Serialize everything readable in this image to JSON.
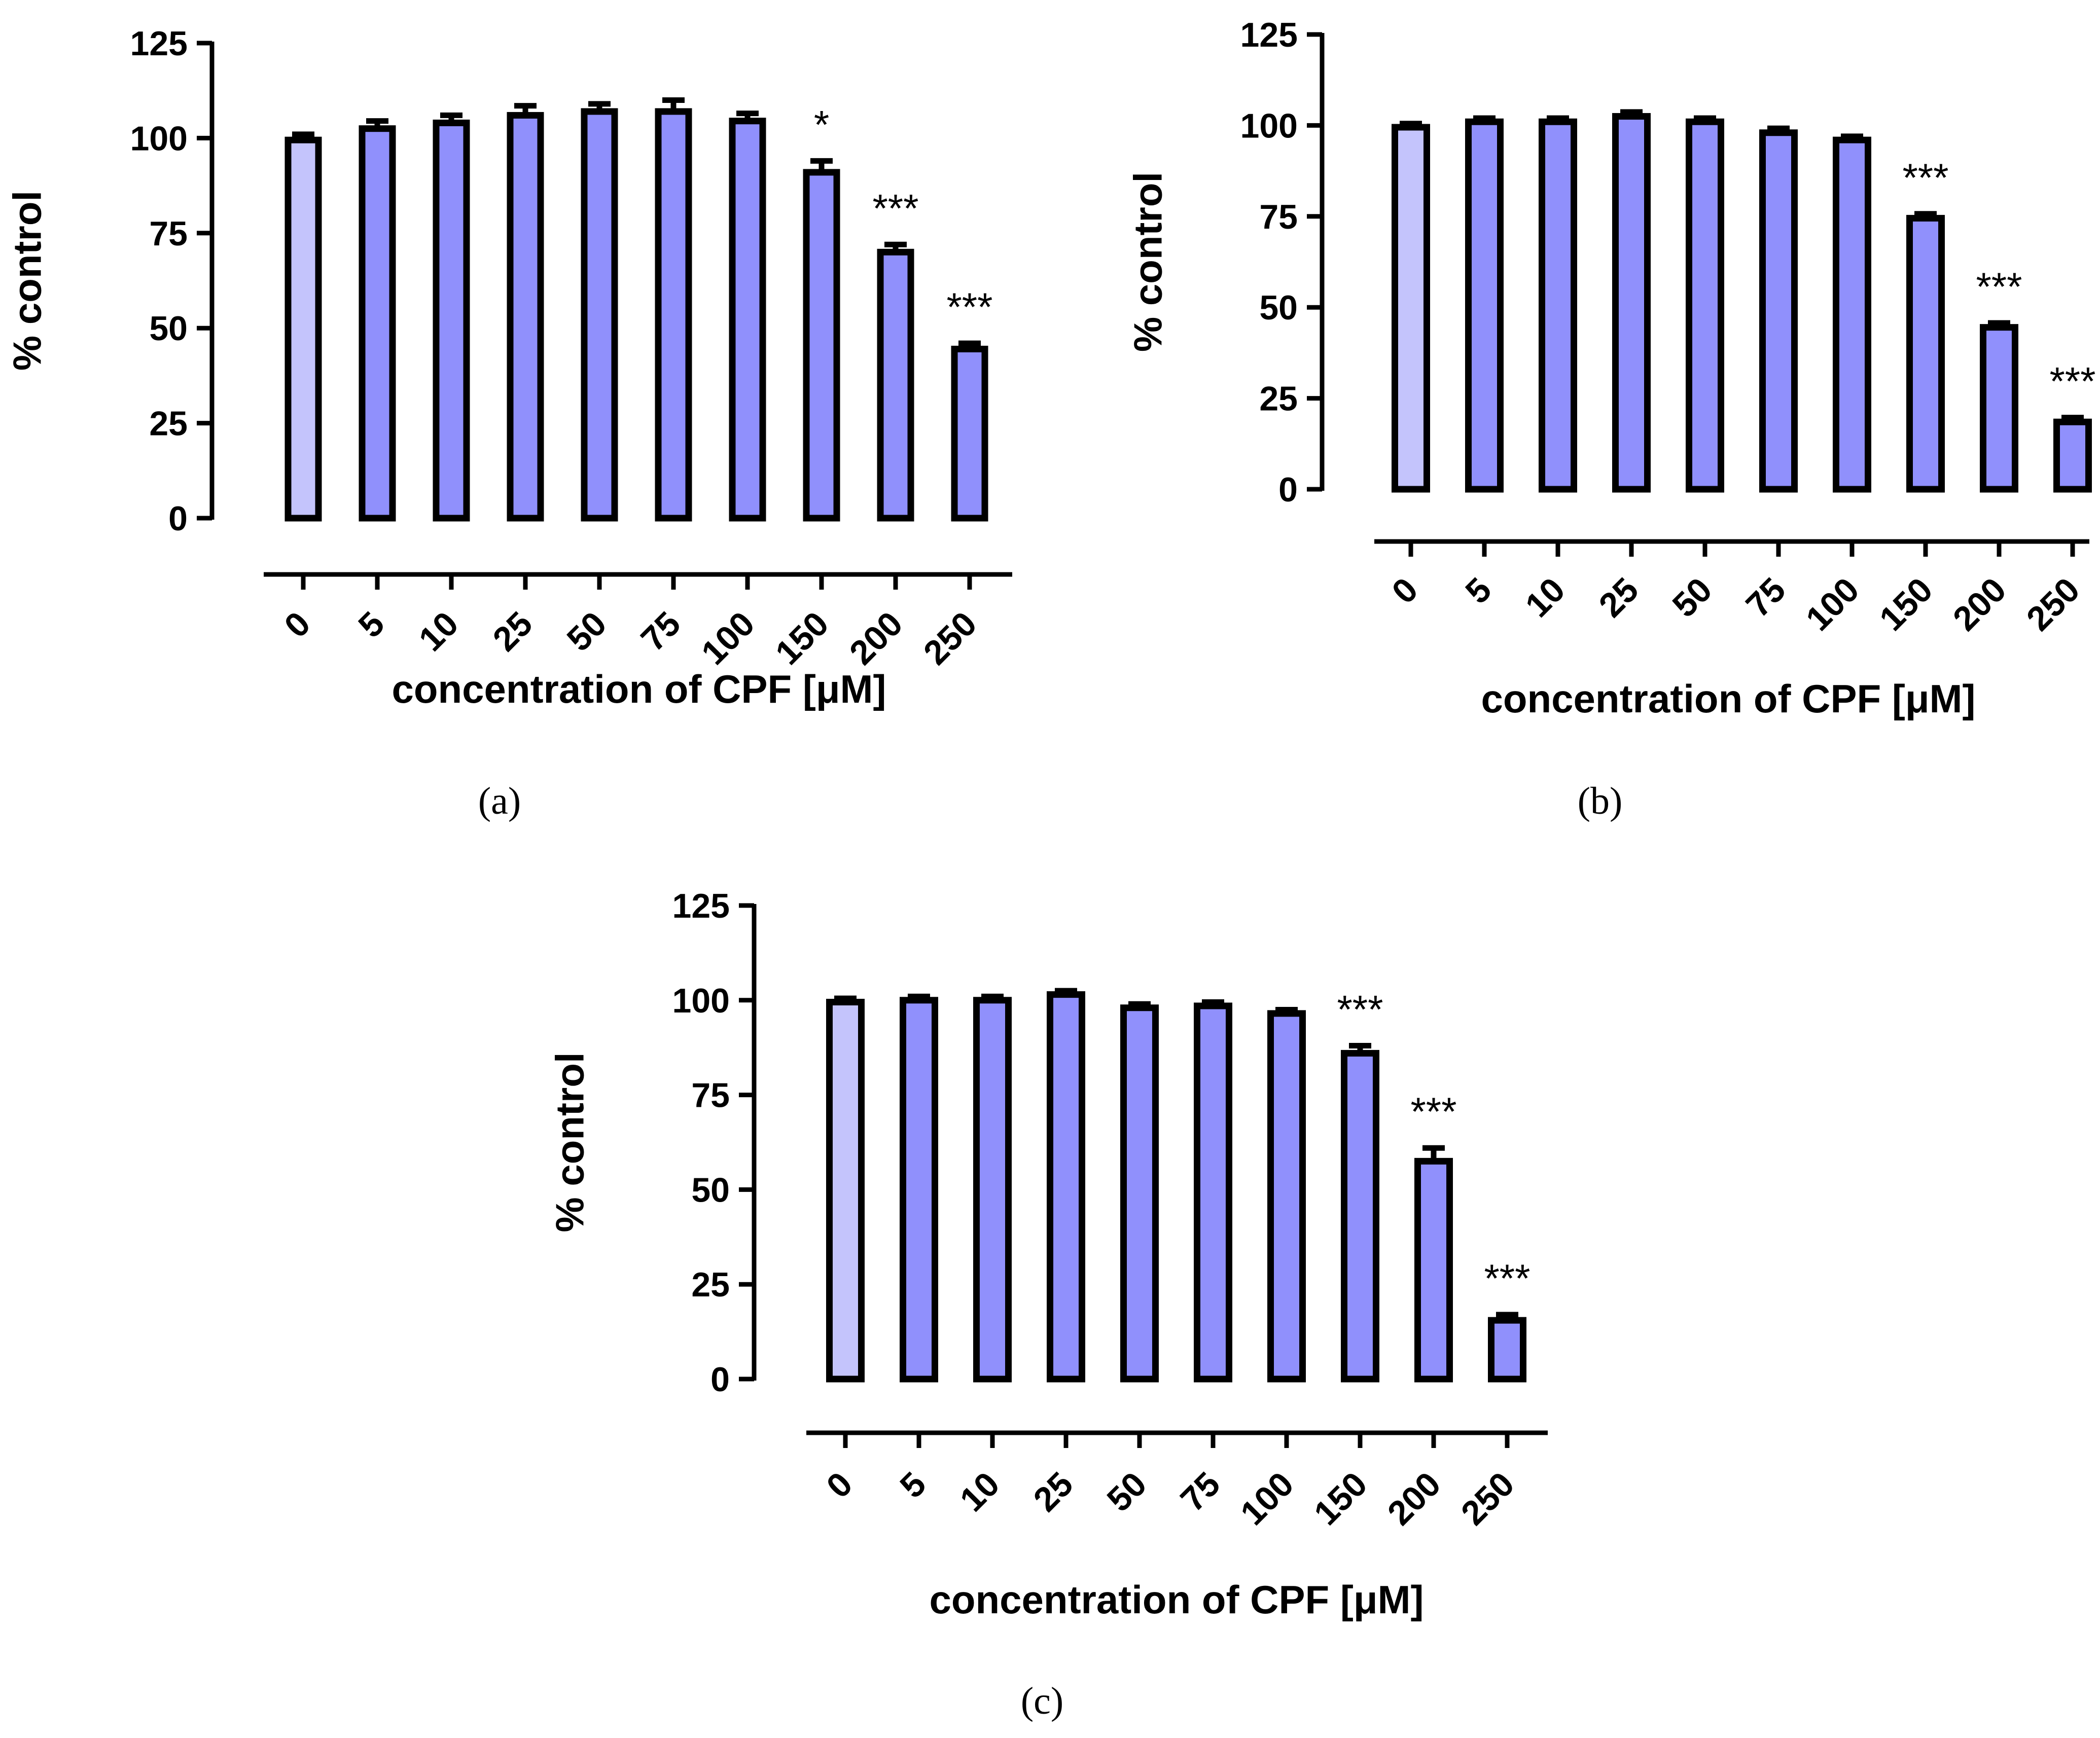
{
  "chart_data": [
    {
      "type": "bar",
      "panel": "(a)",
      "categories": [
        "0",
        "5",
        "10",
        "25",
        "50",
        "75",
        "100",
        "150",
        "200",
        "250"
      ],
      "values": [
        99.5,
        102.5,
        104,
        106,
        107,
        107,
        104.5,
        91,
        70,
        44.5
      ],
      "errors": [
        1.5,
        2,
        2,
        2.5,
        2,
        3,
        2,
        3,
        2,
        1.5
      ],
      "significance": [
        "",
        "",
        "",
        "",
        "",
        "",
        "",
        "*",
        "***",
        "***"
      ],
      "xlabel": "concentration of CPF [μM]",
      "ylabel": "% control",
      "ylim": [
        0,
        125
      ],
      "yticks": [
        0,
        25,
        50,
        75,
        100,
        125
      ],
      "colors": {
        "control": "#c4c4fc",
        "treatment": "#9090fc",
        "outline": "#000000"
      }
    },
    {
      "type": "bar",
      "panel": "(b)",
      "categories": [
        "0",
        "5",
        "10",
        "25",
        "50",
        "75",
        "100",
        "150",
        "200",
        "250"
      ],
      "values": [
        99.5,
        101,
        101,
        102.5,
        101,
        98,
        96,
        74.5,
        44.5,
        18.5
      ],
      "errors": [
        1,
        1,
        1,
        1.2,
        1,
        1.2,
        1,
        1.2,
        1.2,
        1.2
      ],
      "significance": [
        "",
        "",
        "",
        "",
        "",
        "",
        "",
        "***",
        "***",
        "***"
      ],
      "xlabel": "concentration of CPF [μM]",
      "ylabel": "% control",
      "ylim": [
        0,
        125
      ],
      "yticks": [
        0,
        25,
        50,
        75,
        100,
        125
      ],
      "colors": {
        "control": "#c4c4fc",
        "treatment": "#9090fc",
        "outline": "#000000"
      }
    },
    {
      "type": "bar",
      "panel": "(c)",
      "categories": [
        "0",
        "5",
        "10",
        "25",
        "50",
        "75",
        "100",
        "150",
        "200",
        "250"
      ],
      "values": [
        99.5,
        100,
        100,
        101.5,
        98,
        98.5,
        96.5,
        86,
        57.5,
        15.5
      ],
      "errors": [
        1,
        1,
        1,
        1,
        1,
        1,
        1,
        2,
        3.5,
        1.5
      ],
      "significance": [
        "",
        "",
        "",
        "",
        "",
        "",
        "",
        "***",
        "***",
        "***"
      ],
      "xlabel": "concentration of CPF [μM]",
      "ylabel": "% control",
      "ylim": [
        0,
        125
      ],
      "yticks": [
        0,
        25,
        50,
        75,
        100,
        125
      ],
      "colors": {
        "control": "#c4c4fc",
        "treatment": "#9090fc",
        "outline": "#000000"
      }
    }
  ]
}
